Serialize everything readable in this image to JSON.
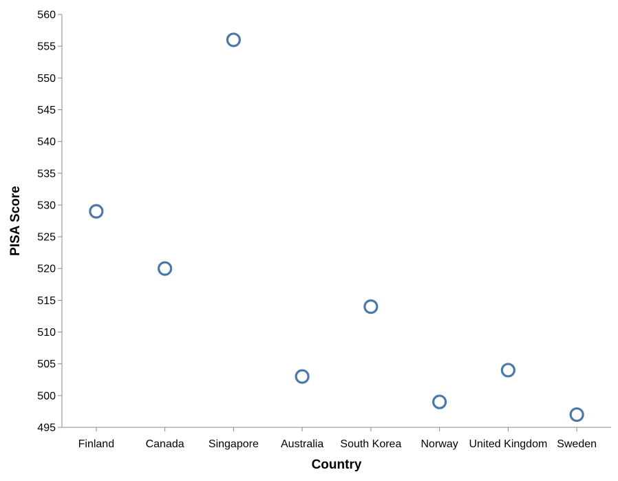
{
  "chart_data": {
    "type": "scatter",
    "categories": [
      "Finland",
      "Canada",
      "Singapore",
      "Australia",
      "South Korea",
      "Norway",
      "United Kingdom",
      "Sweden"
    ],
    "values": [
      529,
      520,
      556,
      503,
      514,
      499,
      504,
      497
    ],
    "xlabel": "Country",
    "ylabel": "PISA Score",
    "ylim": [
      495,
      560
    ],
    "yticks": [
      495,
      500,
      505,
      510,
      515,
      520,
      525,
      530,
      535,
      540,
      545,
      550,
      555,
      560
    ],
    "grid": false,
    "marker": "open-circle",
    "color": "#4c78a8"
  }
}
